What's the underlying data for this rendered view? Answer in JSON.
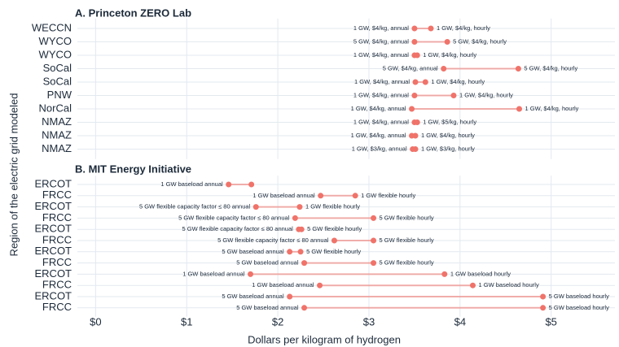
{
  "chart_data": {
    "type": "dumbbell",
    "xlabel": "Dollars per kilogram of hydrogen",
    "ylabel": "Region of the electric grid modeled",
    "xlim": [
      -0.2,
      5.7
    ],
    "xticks": [
      {
        "value": 0,
        "label": "$0"
      },
      {
        "value": 1,
        "label": "$1"
      },
      {
        "value": 2,
        "label": "$2"
      },
      {
        "value": 3,
        "label": "$3"
      },
      {
        "value": 4,
        "label": "$4"
      },
      {
        "value": 5,
        "label": "$5"
      }
    ],
    "grid": true,
    "color": "#f0736a",
    "panels": [
      {
        "title": "A. Princeton ZERO Lab",
        "categories": [
          "WECCN",
          "WYCO",
          "WYCO",
          "SoCal",
          "SoCal",
          "PNW",
          "NorCal",
          "NMAZ",
          "NMAZ",
          "NMAZ"
        ],
        "start": [
          3.5,
          3.5,
          3.5,
          3.82,
          3.51,
          3.5,
          3.47,
          3.5,
          3.47,
          3.48
        ],
        "end": [
          3.68,
          3.86,
          3.53,
          4.64,
          3.62,
          3.93,
          4.65,
          3.53,
          3.51,
          3.51
        ],
        "start_labels": [
          "1 GW, $4/kg, annual",
          "5 GW, $4/kg, annual",
          "1 GW, $4/kg, annual",
          "5 GW, $4/kg, annual",
          "1 GW, $4/kg, annual",
          "1 GW, $4/kg, annual",
          "1 GW, $4/kg, annual",
          "1 GW, $4/kg, annual",
          "1 GW, $4/kg, annual",
          "1 GW, $3/kg, annual"
        ],
        "end_labels": [
          "1 GW, $4/kg, hourly",
          "5 GW, $4/kg, hourly",
          "1 GW, $4/kg, hourly",
          "5 GW, $4/kg, hourly",
          "1 GW, $4/kg, hourly",
          "1 GW, $4/kg, hourly",
          "1 GW, $4/kg, hourly",
          "1 GW, $5/kg, hourly",
          "1 GW, $4/kg, hourly",
          "1 GW, $3/kg, hourly"
        ]
      },
      {
        "title": "B. MIT Energy Initiative",
        "categories": [
          "ERCOT",
          "FRCC",
          "ERCOT",
          "FRCC",
          "ERCOT",
          "FRCC",
          "ERCOT",
          "FRCC",
          "ERCOT",
          "FRCC",
          "ERCOT",
          "FRCC"
        ],
        "start": [
          1.46,
          2.47,
          1.76,
          2.19,
          2.23,
          2.62,
          2.13,
          2.29,
          1.7,
          2.46,
          2.13,
          2.29
        ],
        "end": [
          1.71,
          2.85,
          2.24,
          3.05,
          2.26,
          3.05,
          2.25,
          3.05,
          3.83,
          4.14,
          4.91,
          4.91
        ],
        "start_labels": [
          "1 GW baseload annual",
          "1 GW baseload annual",
          "5 GW flexible capacity factor ≤ 80 annual",
          "5 GW flexible capacity factor ≤ 80 annual",
          "5 GW flexible capacity factor ≤ 80 annual",
          "5 GW flexible capacity factor ≤ 80 annual",
          "5 GW baseload annual",
          "5 GW baseload annual",
          "1 GW baseload annual",
          "1 GW baseload annual",
          "5 GW baseload annual",
          "5 GW baseload annual"
        ],
        "end_labels": [
          null,
          "1 GW flexible hourly",
          "1 GW flexible hourly",
          "5 GW flexible hourly",
          "5 GW flexible hourly",
          "5 GW flexible hourly",
          "5 GW flexible hourly",
          "5 GW flexible hourly",
          "1 GW baseload hourly",
          "1 GW baseload hourly",
          "5 GW baseload hourly",
          "5 GW baseload hourly"
        ]
      }
    ]
  }
}
